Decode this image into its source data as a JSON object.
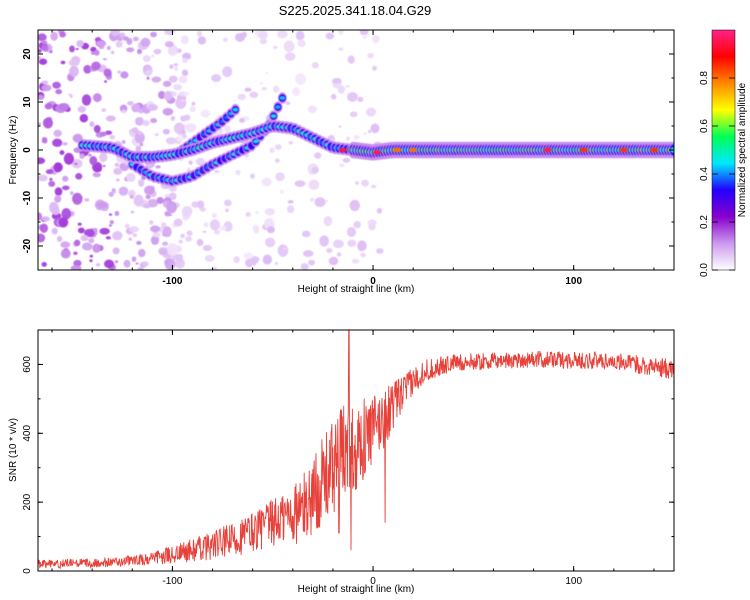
{
  "title": "S225.2025.341.18.04.G29",
  "colors": {
    "snr_line": "#e8413a",
    "background": "#ffffff",
    "axis": "#000000"
  },
  "chart_data": [
    {
      "type": "heatmap",
      "name": "spectrogram",
      "xlabel": "Height of straight line (km)",
      "ylabel": "Frequency (Hz)",
      "xlim": [
        -167,
        150
      ],
      "ylim": [
        -25,
        25
      ],
      "xticks": [
        -100,
        0,
        100
      ],
      "yticks": [
        -20,
        -10,
        0,
        10,
        20
      ],
      "colorbar": {
        "label": "Normalized spectral amplitude",
        "range": [
          0,
          1
        ],
        "ticks": [
          "0.0",
          "0.2",
          "0.4",
          "0.6",
          "0.8"
        ],
        "tick_values": [
          0.0,
          0.2,
          0.4,
          0.6,
          0.8
        ],
        "colors": [
          "#ffffff",
          "#cc99ee",
          "#8800cc",
          "#2200ff",
          "#00e8ff",
          "#00ff55",
          "#ffff00",
          "#ff8800",
          "#ff0000",
          "#ff2288"
        ]
      },
      "main_track": [
        {
          "x": -145,
          "f": 1.0
        },
        {
          "x": -130,
          "f": 0.5
        },
        {
          "x": -120,
          "f": -1.5
        },
        {
          "x": -110,
          "f": -1.5
        },
        {
          "x": -100,
          "f": -1.0
        },
        {
          "x": -90,
          "f": 0.0
        },
        {
          "x": -80,
          "f": 1.5
        },
        {
          "x": -70,
          "f": 2.5
        },
        {
          "x": -60,
          "f": 3.5
        },
        {
          "x": -50,
          "f": 5.0
        },
        {
          "x": -40,
          "f": 4.5
        },
        {
          "x": -30,
          "f": 2.5
        },
        {
          "x": -20,
          "f": 0.5
        },
        {
          "x": -10,
          "f": 0.0
        },
        {
          "x": 0,
          "f": -0.5
        },
        {
          "x": 10,
          "f": 0.0
        },
        {
          "x": 50,
          "f": 0.0
        },
        {
          "x": 100,
          "f": 0.0
        },
        {
          "x": 150,
          "f": 0.0
        }
      ],
      "upper_track": [
        {
          "x": -95,
          "f": 0.0
        },
        {
          "x": -85,
          "f": 3.0
        },
        {
          "x": -75,
          "f": 6.0
        },
        {
          "x": -67,
          "f": 9.0
        }
      ],
      "lower_track": [
        {
          "x": -120,
          "f": -3.0
        },
        {
          "x": -110,
          "f": -5.5
        },
        {
          "x": -100,
          "f": -6.5
        },
        {
          "x": -90,
          "f": -5.5
        },
        {
          "x": -80,
          "f": -3.0
        },
        {
          "x": -70,
          "f": -1.0
        },
        {
          "x": -60,
          "f": 1.0
        },
        {
          "x": -52,
          "f": 5.0
        },
        {
          "x": -45,
          "f": 11.0
        }
      ],
      "high_points": [
        {
          "x": -15,
          "f": 0.0,
          "v": 0.95
        },
        {
          "x": 2,
          "f": -0.5,
          "v": 0.95
        },
        {
          "x": 12,
          "f": 0.0,
          "v": 0.8
        },
        {
          "x": 20,
          "f": 0.0,
          "v": 0.8
        },
        {
          "x": 87,
          "f": 0.0,
          "v": 0.95
        },
        {
          "x": 105,
          "f": 0.0,
          "v": 0.85
        },
        {
          "x": 125,
          "f": 0.0,
          "v": 0.85
        },
        {
          "x": 140,
          "f": 0.0,
          "v": 0.85
        }
      ]
    },
    {
      "type": "line",
      "name": "snr",
      "xlabel": "Height of straight line (km)",
      "ylabel": "SNR (10 * v/v)",
      "xlim": [
        -167,
        150
      ],
      "ylim": [
        0,
        700
      ],
      "xticks": [
        -100,
        0,
        100
      ],
      "yticks": [
        0,
        200,
        400,
        600
      ],
      "series": [
        {
          "name": "SNR",
          "envelope": [
            {
              "x": -167,
              "mean": 20,
              "noise": 12
            },
            {
              "x": -130,
              "mean": 25,
              "noise": 14
            },
            {
              "x": -110,
              "mean": 35,
              "noise": 18
            },
            {
              "x": -90,
              "mean": 60,
              "noise": 35
            },
            {
              "x": -70,
              "mean": 90,
              "noise": 50
            },
            {
              "x": -50,
              "mean": 140,
              "noise": 70
            },
            {
              "x": -35,
              "mean": 180,
              "noise": 100
            },
            {
              "x": -25,
              "mean": 260,
              "noise": 130
            },
            {
              "x": -15,
              "mean": 340,
              "noise": 150
            },
            {
              "x": -5,
              "mean": 380,
              "noise": 120
            },
            {
              "x": 5,
              "mean": 440,
              "noise": 90
            },
            {
              "x": 15,
              "mean": 520,
              "noise": 50
            },
            {
              "x": 25,
              "mean": 580,
              "noise": 35
            },
            {
              "x": 40,
              "mean": 605,
              "noise": 25
            },
            {
              "x": 80,
              "mean": 615,
              "noise": 25
            },
            {
              "x": 120,
              "mean": 610,
              "noise": 25
            },
            {
              "x": 150,
              "mean": 585,
              "noise": 30
            }
          ],
          "spikes": [
            {
              "x": -12,
              "y": 700
            },
            {
              "x": -11,
              "y": 60
            },
            {
              "x": 6,
              "y": 140
            },
            {
              "x": -17,
              "y": 110
            }
          ]
        }
      ]
    }
  ]
}
